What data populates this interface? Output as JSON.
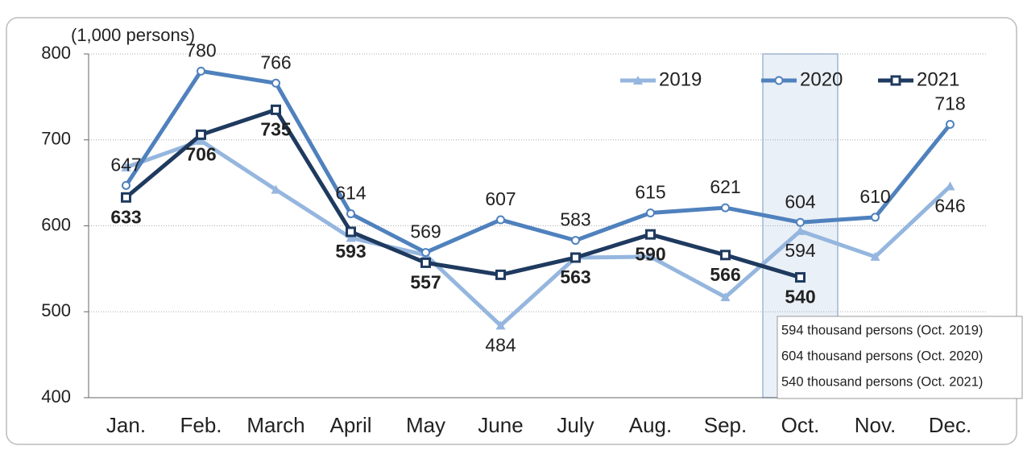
{
  "chart_data": {
    "type": "line",
    "y_axis_label": "(1,000 persons)",
    "categories": [
      "Jan.",
      "Feb.",
      "March",
      "April",
      "May",
      "June",
      "July",
      "Aug.",
      "Sep.",
      "Oct.",
      "Nov.",
      "Dec."
    ],
    "series": [
      {
        "name": "2019",
        "color": "#95b6de",
        "marker": "triangle",
        "values": [
          668,
          699,
          642,
          586,
          566,
          484,
          563,
          564,
          517,
          594,
          564,
          646
        ],
        "value_labels": [
          null,
          null,
          null,
          null,
          null,
          "484",
          null,
          null,
          null,
          "594",
          null,
          "646"
        ]
      },
      {
        "name": "2020",
        "color": "#4f81bd",
        "marker": "diamond",
        "values": [
          647,
          780,
          766,
          614,
          569,
          607,
          583,
          615,
          621,
          604,
          610,
          718
        ],
        "value_labels": [
          "647",
          "780",
          "766",
          "614",
          "569",
          "607",
          "583",
          "615",
          "621",
          "604",
          "610",
          "718"
        ]
      },
      {
        "name": "2021",
        "color": "#1f3a5f",
        "marker": "square",
        "values": [
          633,
          706,
          735,
          593,
          557,
          543,
          563,
          590,
          566,
          540,
          null,
          null
        ],
        "value_labels": [
          "633",
          "706",
          "735",
          "593",
          "557",
          null,
          "563",
          "590",
          "566",
          "540",
          null,
          null
        ]
      }
    ],
    "ylim": [
      400,
      800
    ],
    "yticks": [
      400,
      500,
      600,
      700,
      800
    ],
    "grid": true,
    "legend": "upper right",
    "highlight_category": "Oct.",
    "annotations": [
      "594 thousand persons (Oct. 2019)",
      "604 thousand persons (Oct. 2020)",
      "540 thousand persons (Oct. 2021)"
    ]
  }
}
